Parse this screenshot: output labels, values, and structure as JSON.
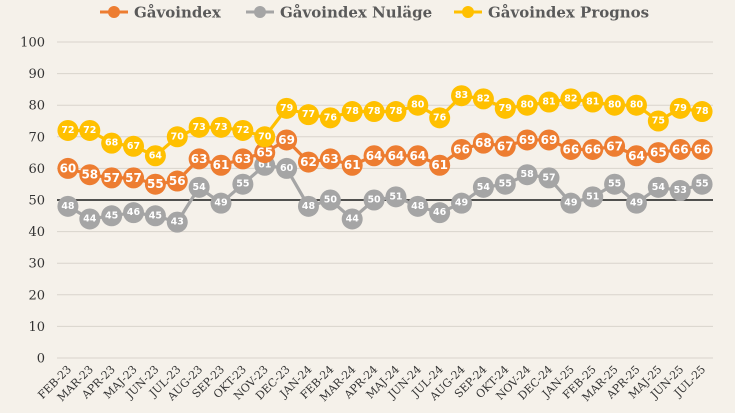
{
  "chart_data": {
    "type": "line",
    "legend_position": "top",
    "grid": true,
    "ylim": [
      0,
      100
    ],
    "yticks": [
      0,
      10,
      20,
      30,
      40,
      50,
      60,
      70,
      80,
      90,
      100
    ],
    "reference_line": 50,
    "categories": [
      "FEB-23",
      "MAR-23",
      "APR-23",
      "MAJ-23",
      "JUN-23",
      "JUL-23",
      "AUG-23",
      "SEP-23",
      "OKT-23",
      "NOV-23",
      "DEC-23",
      "JAN-24",
      "FEB-24",
      "MAR-24",
      "APR-24",
      "MAJ-24",
      "JUN-24",
      "JUL-24",
      "AUG-24",
      "SEP-24",
      "OKT-24",
      "NOV-24",
      "DEC-24",
      "JAN-25",
      "FEB-25",
      "MAR-25",
      "APR-25",
      "MAJ-25",
      "JUN-25",
      "JUL-25"
    ],
    "series": [
      {
        "name": "Gåvoindex",
        "color": "#ed7d31",
        "label_color": "#ffffff",
        "values": [
          60,
          58,
          57,
          57,
          55,
          56,
          63,
          61,
          63,
          65,
          69,
          62,
          63,
          61,
          64,
          64,
          64,
          61,
          66,
          68,
          67,
          69,
          69,
          66,
          66,
          67,
          64,
          65,
          66,
          66
        ]
      },
      {
        "name": "Gåvoindex Nuläge",
        "color": "#a5a5a5",
        "label_color": "#ffffff",
        "values": [
          48,
          44,
          45,
          46,
          45,
          43,
          54,
          49,
          55,
          61,
          60,
          48,
          50,
          44,
          50,
          51,
          48,
          46,
          49,
          54,
          55,
          58,
          57,
          49,
          51,
          55,
          49,
          54,
          53,
          55
        ]
      },
      {
        "name": "Gåvoindex Prognos",
        "color": "#ffc000",
        "label_color": "#ffffff",
        "values": [
          72,
          72,
          68,
          67,
          64,
          70,
          73,
          73,
          72,
          70,
          79,
          77,
          76,
          78,
          78,
          78,
          80,
          76,
          83,
          82,
          79,
          80,
          81,
          82,
          81,
          80,
          80,
          75,
          79,
          78
        ]
      }
    ]
  }
}
